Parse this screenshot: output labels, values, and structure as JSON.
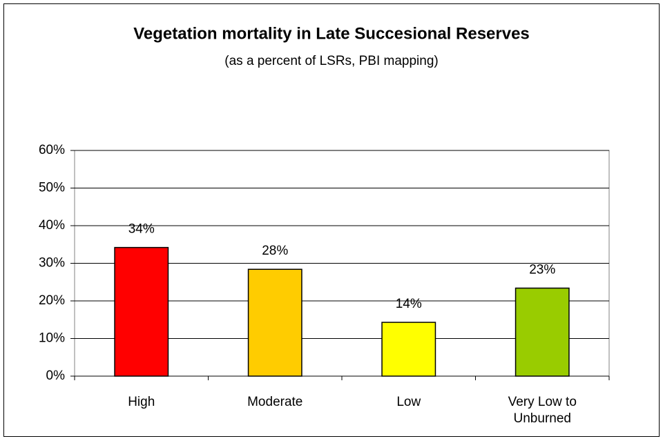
{
  "chart_data": {
    "type": "bar",
    "title": "Vegetation mortality in Late Succesional Reserves",
    "subtitle": "(as a percent of LSRs, PBI mapping)",
    "categories": [
      "High",
      "Moderate",
      "Low",
      "Very Low to Unburned"
    ],
    "values": [
      34.2,
      28.4,
      14.3,
      23.4
    ],
    "value_labels": [
      "34%",
      "28%",
      "14%",
      "23%"
    ],
    "colors": [
      "#ff0000",
      "#ffcc00",
      "#ffff00",
      "#99cc00"
    ],
    "ylim": [
      0,
      60
    ],
    "yticks": [
      {
        "value": 0,
        "label": "0%"
      },
      {
        "value": 10,
        "label": "10%"
      },
      {
        "value": 20,
        "label": "20%"
      },
      {
        "value": 30,
        "label": "30%"
      },
      {
        "value": 40,
        "label": "40%"
      },
      {
        "value": 50,
        "label": "50%"
      },
      {
        "value": 60,
        "label": "60%"
      }
    ],
    "grid": true
  }
}
